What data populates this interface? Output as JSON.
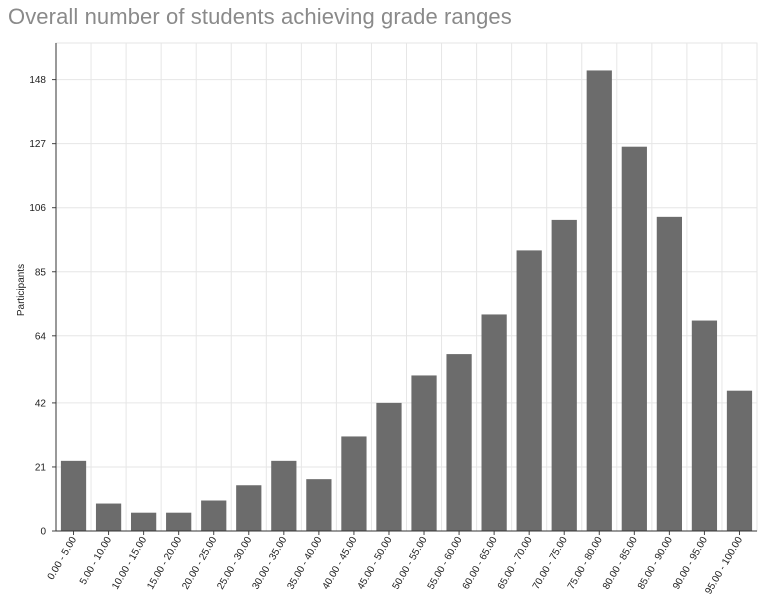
{
  "chart_data": {
    "type": "bar",
    "title": "Overall number of students achieving grade ranges",
    "ylabel": "Participants",
    "xlabel": "",
    "categories": [
      "0.00 - 5.00",
      "5.00 - 10.00",
      "10.00 - 15.00",
      "15.00 - 20.00",
      "20.00 - 25.00",
      "25.00 - 30.00",
      "30.00 - 35.00",
      "35.00 - 40.00",
      "40.00 - 45.00",
      "45.00 - 50.00",
      "50.00 - 55.00",
      "55.00 - 60.00",
      "60.00 - 65.00",
      "65.00 - 70.00",
      "70.00 - 75.00",
      "75.00 - 80.00",
      "80.00 - 85.00",
      "85.00 - 90.00",
      "90.00 - 95.00",
      "95.00 - 100.00"
    ],
    "values": [
      23,
      9,
      6,
      6,
      10,
      15,
      23,
      17,
      31,
      42,
      51,
      58,
      71,
      92,
      102,
      151,
      126,
      103,
      69,
      46
    ],
    "yticks": [
      0,
      21,
      42,
      64,
      85,
      106,
      127,
      148
    ],
    "ylim": [
      0,
      160
    ],
    "grid": true,
    "bar_color": "#6c6c6c",
    "grid_color": "#e6e6e6"
  }
}
